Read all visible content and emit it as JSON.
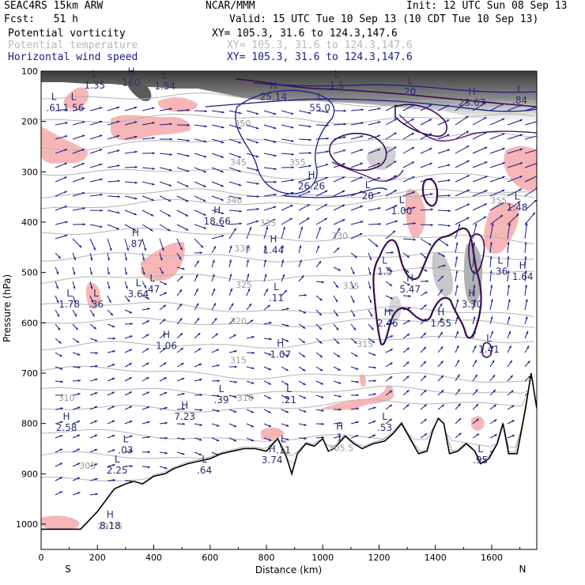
{
  "header": {
    "model": "SEAC4RS 15km ARW",
    "org": "NCAR/MMM",
    "init": "Init: 12 UTC Sun 08 Sep 13",
    "fcst": "Fcst:   51 h",
    "valid": "Valid: 15 UTC Tue 10 Sep 13 (10 CDT Tue 10 Sep 13)",
    "fields": [
      {
        "name": "Potential vorticity",
        "xy": "XY= 105.3, 31.6 to 124.3,147.6",
        "color": "#000000"
      },
      {
        "name": "Potential temperature",
        "xy": "XY= 105.3, 31.6 to 124.3,147.6",
        "color": "#b8b8b8"
      },
      {
        "name": "Horizontal wind speed",
        "xy": "XY= 105.3, 31.6 to 124.3,147.6",
        "color": "#1a1a8c"
      }
    ]
  },
  "chart_data": {
    "type": "cross-section",
    "xlabel": "Distance (km)",
    "ylabel": "Pressure (hPa)",
    "xlim": [
      0,
      1760
    ],
    "ylim": [
      1050,
      100
    ],
    "x_ticks": [
      0,
      200,
      400,
      600,
      800,
      1000,
      1200,
      1400,
      1600
    ],
    "y_ticks": [
      100,
      200,
      300,
      400,
      500,
      600,
      700,
      800,
      900,
      1000
    ],
    "end_labels": {
      "left": "S",
      "right": "N"
    },
    "terrain": [
      [
        0,
        1010
      ],
      [
        140,
        1010
      ],
      [
        200,
        975
      ],
      [
        260,
        930
      ],
      [
        300,
        920
      ],
      [
        330,
        915
      ],
      [
        360,
        920
      ],
      [
        400,
        905
      ],
      [
        440,
        900
      ],
      [
        470,
        890
      ],
      [
        520,
        880
      ],
      [
        560,
        875
      ],
      [
        600,
        870
      ],
      [
        640,
        860
      ],
      [
        680,
        855
      ],
      [
        720,
        850
      ],
      [
        760,
        850
      ],
      [
        800,
        855
      ],
      [
        840,
        830
      ],
      [
        870,
        865
      ],
      [
        890,
        900
      ],
      [
        910,
        860
      ],
      [
        940,
        840
      ],
      [
        970,
        845
      ],
      [
        1000,
        830
      ],
      [
        1020,
        855
      ],
      [
        1040,
        850
      ],
      [
        1080,
        825
      ],
      [
        1110,
        840
      ],
      [
        1140,
        850
      ],
      [
        1180,
        840
      ],
      [
        1220,
        835
      ],
      [
        1250,
        820
      ],
      [
        1280,
        800
      ],
      [
        1310,
        830
      ],
      [
        1340,
        860
      ],
      [
        1370,
        855
      ],
      [
        1390,
        815
      ],
      [
        1410,
        790
      ],
      [
        1430,
        800
      ],
      [
        1450,
        860
      ],
      [
        1480,
        855
      ],
      [
        1510,
        840
      ],
      [
        1540,
        855
      ],
      [
        1560,
        880
      ],
      [
        1590,
        870
      ],
      [
        1620,
        840
      ],
      [
        1640,
        800
      ],
      [
        1660,
        860
      ],
      [
        1690,
        860
      ],
      [
        1720,
        770
      ],
      [
        1740,
        700
      ],
      [
        1760,
        770
      ]
    ],
    "theta_labels": [
      {
        "text": "310",
        "x": 90,
        "p": 755
      },
      {
        "text": "305",
        "x": 165,
        "p": 890
      },
      {
        "text": "297.5",
        "x": 245,
        "p": 1010
      },
      {
        "text": "305.5",
        "x": 1065,
        "p": 855
      },
      {
        "text": "310",
        "x": 725,
        "p": 755
      },
      {
        "text": "315",
        "x": 700,
        "p": 680
      },
      {
        "text": "315",
        "x": 1150,
        "p": 648
      },
      {
        "text": "320",
        "x": 700,
        "p": 603
      },
      {
        "text": "325",
        "x": 720,
        "p": 530
      },
      {
        "text": "330",
        "x": 715,
        "p": 458
      },
      {
        "text": "330",
        "x": 1060,
        "p": 433
      },
      {
        "text": "335",
        "x": 805,
        "p": 408
      },
      {
        "text": "335",
        "x": 1100,
        "p": 533
      },
      {
        "text": "340",
        "x": 685,
        "p": 362
      },
      {
        "text": "345",
        "x": 700,
        "p": 287
      },
      {
        "text": "350",
        "x": 715,
        "p": 210
      },
      {
        "text": "355",
        "x": 910,
        "p": 287
      },
      {
        "text": "355",
        "x": 1625,
        "p": 363
      }
    ],
    "extrema": [
      {
        "type": "L",
        "value": "1.35",
        "x": 190,
        "p": 125
      },
      {
        "type": "L",
        "value": "1.54",
        "x": 440,
        "p": 127
      },
      {
        "type": "H",
        "value": "160",
        "x": 320,
        "p": 120
      },
      {
        "type": "L",
        "value": ".61",
        "x": 45,
        "p": 170
      },
      {
        "type": "L",
        "value": "1.56",
        "x": 115,
        "p": 170
      },
      {
        "type": "H",
        "value": "25.14",
        "x": 825,
        "p": 148
      },
      {
        "type": "L",
        "value": "55.0",
        "x": 990,
        "p": 170
      },
      {
        "type": "L",
        "value": "1.5",
        "x": 1050,
        "p": 125
      },
      {
        "type": "H",
        "value": "23.67",
        "x": 1530,
        "p": 160
      },
      {
        "type": "L",
        "value": ".84",
        "x": 1700,
        "p": 155
      },
      {
        "type": "L",
        "value": "20",
        "x": 1310,
        "p": 138
      },
      {
        "type": "H",
        "value": "26.26",
        "x": 960,
        "p": 325
      },
      {
        "type": "L",
        "value": "20",
        "x": 1160,
        "p": 345
      },
      {
        "type": "L",
        "value": "1.00",
        "x": 1280,
        "p": 375
      },
      {
        "type": "L",
        "value": "1.48",
        "x": 1690,
        "p": 368
      },
      {
        "type": "H",
        "value": "18.66",
        "x": 625,
        "p": 395
      },
      {
        "type": "H",
        "value": ".87",
        "x": 335,
        "p": 440
      },
      {
        "type": "H",
        "value": "1.44",
        "x": 825,
        "p": 453
      },
      {
        "type": "L",
        "value": "1.5",
        "x": 1220,
        "p": 495
      },
      {
        "type": "L",
        "value": ".36",
        "x": 1630,
        "p": 495
      },
      {
        "type": "H",
        "value": "1.64",
        "x": 1710,
        "p": 505
      },
      {
        "type": "H",
        "value": "5.47",
        "x": 1310,
        "p": 530
      },
      {
        "type": "L",
        "value": "1.78",
        "x": 100,
        "p": 560
      },
      {
        "type": "L",
        "value": ".36",
        "x": 195,
        "p": 560
      },
      {
        "type": "L",
        "value": "3.64",
        "x": 345,
        "p": 540
      },
      {
        "type": "L",
        "value": ".47",
        "x": 395,
        "p": 530
      },
      {
        "type": "L",
        "value": ".11",
        "x": 835,
        "p": 548
      },
      {
        "type": "H",
        "value": "2.46",
        "x": 1230,
        "p": 598
      },
      {
        "type": "H",
        "value": "1.55",
        "x": 1420,
        "p": 598
      },
      {
        "type": "H",
        "value": "3.30",
        "x": 1530,
        "p": 560
      },
      {
        "type": "H",
        "value": "1.06",
        "x": 445,
        "p": 643
      },
      {
        "type": "H",
        "value": "1.07",
        "x": 850,
        "p": 660
      },
      {
        "type": "L",
        "value": "1.41",
        "x": 1590,
        "p": 650
      },
      {
        "type": "L",
        "value": ".39",
        "x": 640,
        "p": 750
      },
      {
        "type": "L",
        "value": ".21",
        "x": 880,
        "p": 750
      },
      {
        "type": "H",
        "value": "7.23",
        "x": 510,
        "p": 783
      },
      {
        "type": "H",
        "value": "2.58",
        "x": 90,
        "p": 805
      },
      {
        "type": "L",
        "value": ".03",
        "x": 300,
        "p": 850
      },
      {
        "type": "H",
        "value": "3.74",
        "x": 820,
        "p": 870
      },
      {
        "type": "L",
        "value": ".11",
        "x": 860,
        "p": 850
      },
      {
        "type": "L",
        "value": "2.25",
        "x": 270,
        "p": 890
      },
      {
        "type": "L",
        "value": ".64",
        "x": 580,
        "p": 890
      },
      {
        "type": "H",
        "value": "1",
        "x": 1060,
        "p": 825
      },
      {
        "type": "L",
        "value": ".53",
        "x": 1220,
        "p": 805
      },
      {
        "type": "L",
        "value": ".95",
        "x": 1560,
        "p": 870
      },
      {
        "type": "H",
        "value": "8.18",
        "x": 245,
        "p": 1000
      }
    ]
  }
}
